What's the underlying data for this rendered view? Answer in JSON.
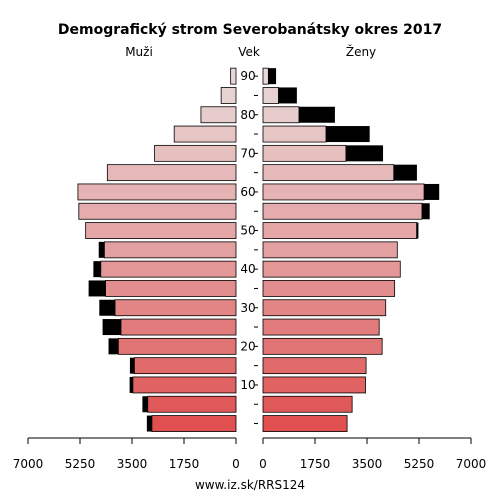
{
  "chart_data": {
    "type": "bar",
    "orientation": "horizontal-population-pyramid",
    "title": "Demografický strom Severobanátsky okres 2017",
    "left_label": "Muži",
    "center_label": "Vek",
    "right_label": "Ženy",
    "source": "www.iz.sk/RRS124",
    "xlim": [
      0,
      7000
    ],
    "x_ticks": [
      7000,
      5250,
      3500,
      1750,
      0
    ],
    "x_tick_labels_left": [
      "7000",
      "5250",
      "3500",
      "1750",
      "0"
    ],
    "x_tick_labels_right": [
      "0",
      "1750",
      "3500",
      "5250",
      "7000"
    ],
    "age_tick_labels": [
      "10",
      "20",
      "30",
      "40",
      "50",
      "60",
      "70",
      "80",
      "90"
    ],
    "age_groups": [
      "0-4",
      "5-9",
      "10-14",
      "15-19",
      "20-24",
      "25-29",
      "30-34",
      "35-39",
      "40-44",
      "45-49",
      "50-54",
      "55-59",
      "60-64",
      "65-69",
      "70-74",
      "75-79",
      "80-84",
      "85-89",
      "90+"
    ],
    "series": [
      {
        "name": "Muži",
        "values": [
          2830,
          2970,
          3470,
          3420,
          3960,
          3870,
          4070,
          4390,
          4550,
          4430,
          5060,
          5290,
          5320,
          4330,
          2740,
          2080,
          1180,
          500,
          180
        ]
      },
      {
        "name": "Muži excess",
        "values": [
          170,
          180,
          110,
          150,
          330,
          620,
          530,
          570,
          250,
          190,
          0,
          0,
          0,
          0,
          0,
          0,
          0,
          0,
          0
        ]
      },
      {
        "name": "Ženy",
        "values": [
          2830,
          3000,
          3450,
          3470,
          4010,
          3910,
          4130,
          4430,
          4620,
          4520,
          5170,
          5350,
          5420,
          4400,
          2790,
          2120,
          1210,
          520,
          180
        ]
      },
      {
        "name": "Ženy excess",
        "values": [
          0,
          0,
          0,
          0,
          0,
          0,
          0,
          0,
          0,
          0,
          60,
          260,
          510,
          780,
          1250,
          1470,
          1210,
          620,
          260
        ]
      }
    ],
    "colors": {
      "excess": "#000000",
      "outline": "#000000",
      "gradient_young": "#e05050",
      "gradient_mid": "#e3a0a0",
      "gradient_old": "#e8d8d8"
    },
    "grid": false
  }
}
